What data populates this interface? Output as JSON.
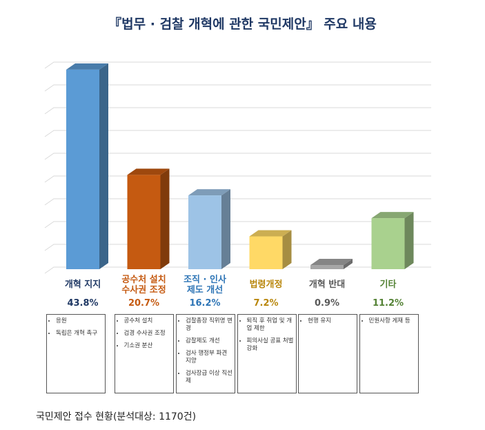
{
  "chart_data": {
    "type": "bar3d",
    "title": "『법무 · 검찰 개혁에 관한 국민제안』 주요 내용",
    "categories": [
      "개혁 지지",
      "공수처 설치\n수사권 조정",
      "조직 · 인사\n제도 개선",
      "법령개정",
      "개혁 반대",
      "기타"
    ],
    "values": [
      43.8,
      20.7,
      16.2,
      7.2,
      0.9,
      11.2
    ],
    "value_labels": [
      "43.8%",
      "20.7%",
      "16.2%",
      "7.2%",
      "0.9%",
      "11.2%"
    ],
    "colors": [
      "#5b9bd5",
      "#c55a11",
      "#9dc3e6",
      "#ffd966",
      "#a6a6a6",
      "#a9d18e"
    ],
    "label_colors": [
      "#1f3864",
      "#c55a11",
      "#2e75b6",
      "#b8860b",
      "#595959",
      "#548235"
    ],
    "ylim": [
      0,
      45
    ],
    "yticks": [
      0,
      5,
      10,
      15,
      20,
      25,
      30,
      35,
      40,
      45
    ],
    "grid": true,
    "details": [
      [
        "응원",
        "독립은 개혁 촉구"
      ],
      [
        "공수처 설치",
        "검경 수사권 조정",
        "기소권 분산"
      ],
      [
        "검찰총장 직위명 변경",
        "감찰제도 개선",
        "검사 행정부 파견 지양",
        "검사장급 이상 직선제"
      ],
      [
        "퇴직 후 취업 및 개업 제한",
        "피의사실 공표 처벌 강화"
      ],
      [
        "현행 유지"
      ],
      [
        "민원사항 게재 등"
      ]
    ],
    "note": "국민제안 접수 현황(분석대상: 1170건)"
  }
}
